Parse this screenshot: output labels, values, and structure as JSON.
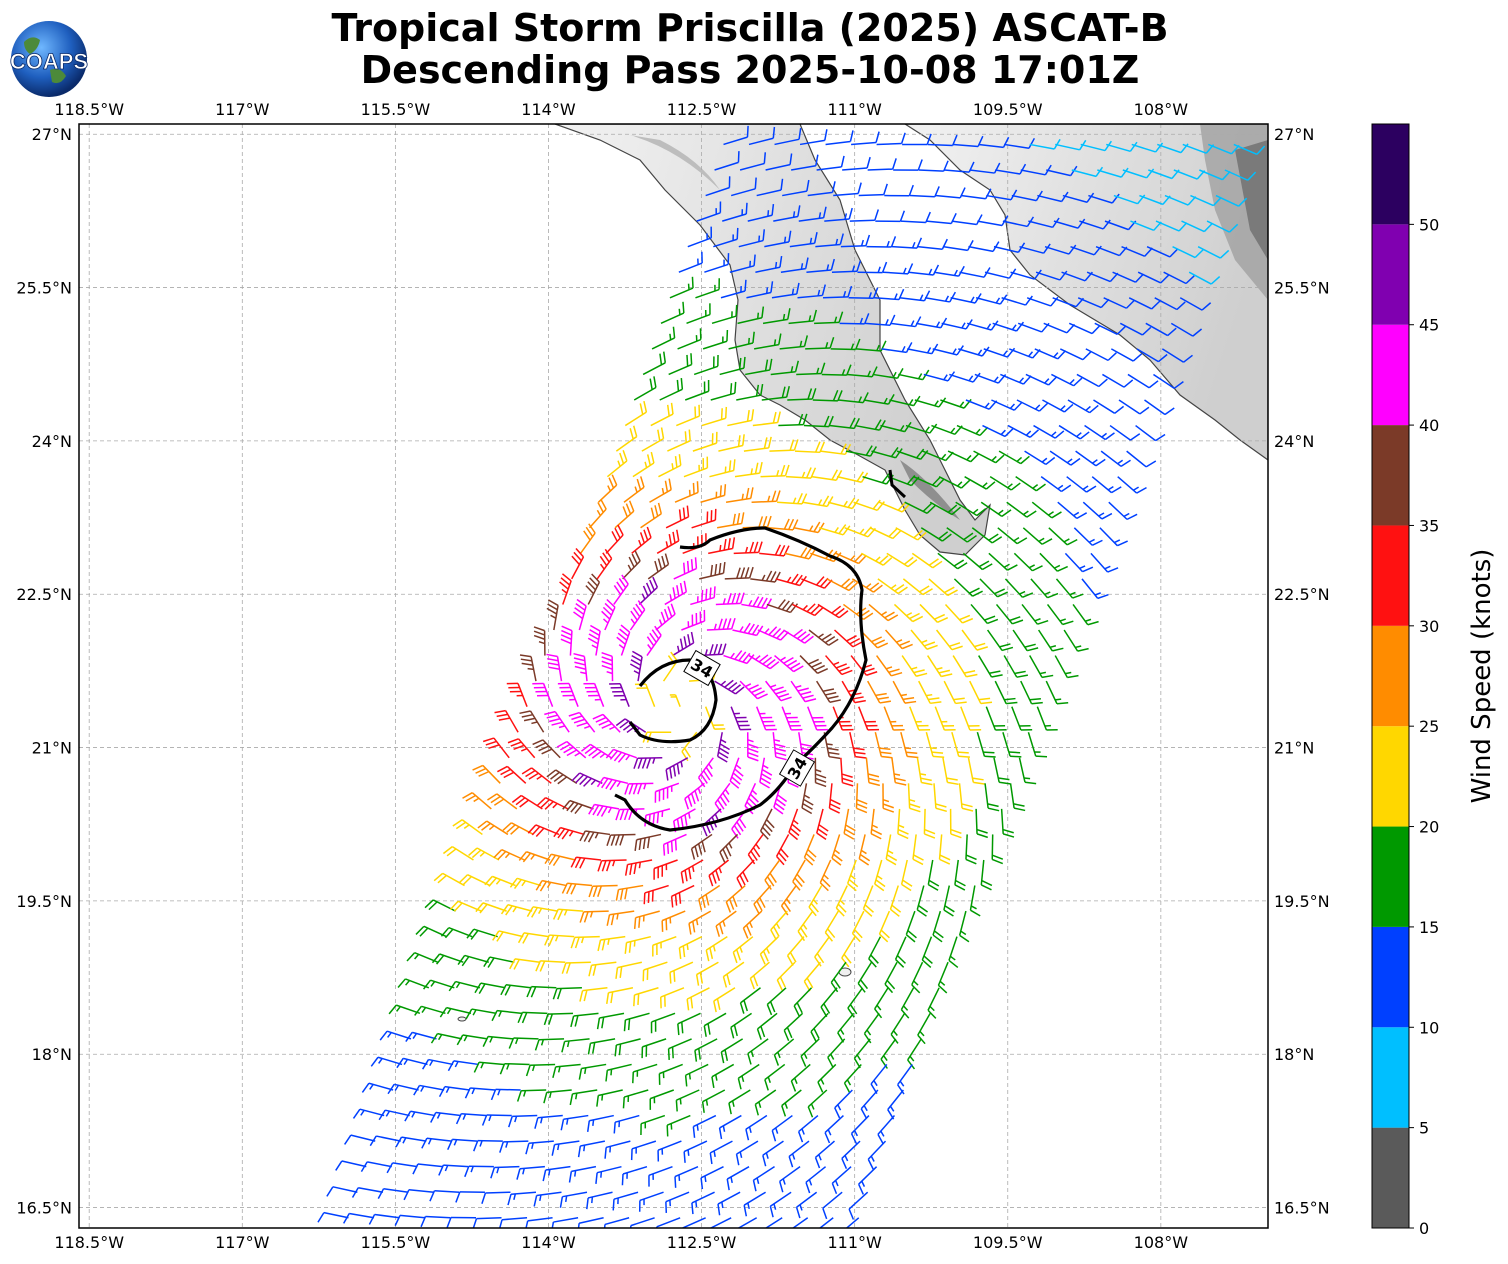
{
  "title": {
    "line1": "Tropical Storm Priscilla (2025) ASCAT-B",
    "line2": "Descending Pass 2025-10-08 17:01Z"
  },
  "logo": {
    "text": "COAPS"
  },
  "map": {
    "lon_range": [
      -118.6,
      -106.95
    ],
    "lat_range": [
      16.3,
      27.1
    ],
    "lon_ticks": [
      "118.5°W",
      "117°W",
      "115.5°W",
      "114°W",
      "112.5°W",
      "111°W",
      "109.5°W",
      "108°W"
    ],
    "lat_ticks": [
      "27°N",
      "25.5°N",
      "24°N",
      "22.5°N",
      "21°N",
      "19.5°N",
      "18°N",
      "16.5°N"
    ],
    "gridlines": true,
    "storm_center": {
      "lon": -112.7,
      "lat": 21.4
    },
    "contour_labels": [
      "34",
      "34"
    ]
  },
  "colorbar": {
    "label": "Wind Speed (knots)",
    "ticks": [
      "0",
      "5",
      "10",
      "15",
      "20",
      "25",
      "30",
      "35",
      "40",
      "45",
      "50"
    ],
    "bins": [
      {
        "from": 0,
        "to": 5,
        "color": "#5a5a5a"
      },
      {
        "from": 5,
        "to": 10,
        "color": "#00bfff"
      },
      {
        "from": 10,
        "to": 15,
        "color": "#0040ff"
      },
      {
        "from": 15,
        "to": 20,
        "color": "#009900"
      },
      {
        "from": 20,
        "to": 25,
        "color": "#ffd700"
      },
      {
        "from": 25,
        "to": 30,
        "color": "#ff8c00"
      },
      {
        "from": 30,
        "to": 35,
        "color": "#ff1111"
      },
      {
        "from": 35,
        "to": 40,
        "color": "#7b3a28"
      },
      {
        "from": 40,
        "to": 45,
        "color": "#ff00ff"
      },
      {
        "from": 45,
        "to": 50,
        "color": "#8000b0"
      },
      {
        "from": 50,
        "to": 55,
        "color": "#2c0060"
      }
    ]
  }
}
